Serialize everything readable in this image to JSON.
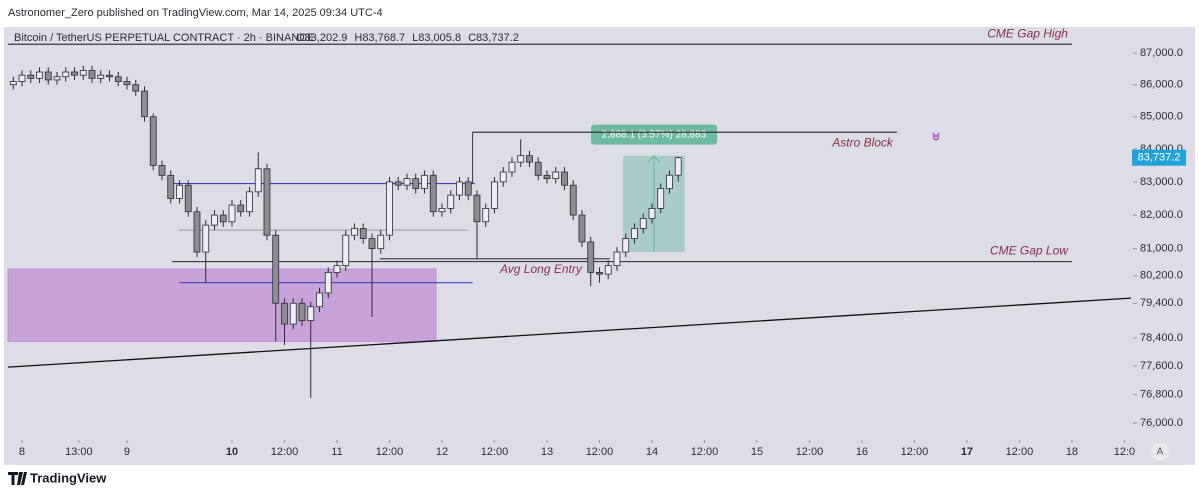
{
  "publisher": "Astronomer_Zero published on TradingView.com, Mar 14, 2025 09:34 UTC-4",
  "brand": "TradingView",
  "scale_button": "A",
  "chart_data": {
    "type": "candlestick",
    "symbol": "Bitcoin / TetherUS PERPETUAL CONTRACT · 2h · BINANCE",
    "last_labels": {
      "open": "O83,202.9",
      "high": "H83,768.7",
      "low": "L83,005.8",
      "close": "C83,737.2"
    },
    "last_price_label": "83,737.2",
    "last_price_color": "#22a3d6",
    "log_scale": true,
    "up_color": "#eceef4",
    "down_color": "#8c8d92",
    "x": [
      -2,
      0,
      2,
      4,
      6,
      8,
      10,
      12,
      14,
      16,
      18,
      20,
      22,
      24,
      26,
      28,
      30,
      32,
      34,
      36,
      38,
      40,
      42,
      44,
      46,
      48,
      50,
      52,
      54,
      56,
      58,
      60,
      62,
      64,
      66,
      68,
      70,
      72,
      74,
      76,
      78,
      80,
      82,
      84,
      86,
      88,
      90,
      92,
      94,
      96,
      98,
      100,
      102,
      104,
      106,
      108,
      110,
      112,
      114,
      116,
      118,
      120,
      122,
      124,
      126,
      128,
      130,
      132,
      134,
      136,
      138,
      140,
      142,
      144,
      146,
      148,
      150
    ],
    "open": [
      86000,
      86100,
      86300,
      86200,
      86400,
      86150,
      86250,
      86400,
      86300,
      86450,
      86200,
      86300,
      86250,
      86100,
      86000,
      85800,
      85000,
      83500,
      83200,
      82500,
      82900,
      82100,
      80900,
      81700,
      82000,
      81800,
      82300,
      82100,
      82700,
      83400,
      81400,
      79400,
      78800,
      79400,
      78900,
      79300,
      79700,
      80300,
      80500,
      81400,
      81600,
      81300,
      81000,
      81400,
      83000,
      82900,
      83100,
      82800,
      83200,
      82100,
      82200,
      82600,
      83000,
      82600,
      81800,
      82200,
      83000,
      83300,
      83600,
      83800,
      83600,
      83200,
      83100,
      83300,
      82900,
      82000,
      81200,
      80300,
      80250,
      80500,
      80900,
      81300,
      81600,
      81900,
      82200,
      82800,
      83202.9
    ],
    "high": [
      86250,
      86450,
      86450,
      86550,
      86550,
      86400,
      86550,
      86550,
      86600,
      86600,
      86450,
      86450,
      86400,
      86250,
      86150,
      85950,
      85100,
      83650,
      83350,
      83050,
      83050,
      82250,
      81850,
      82150,
      82150,
      82450,
      82450,
      82850,
      83900,
      83550,
      81550,
      79550,
      79550,
      79550,
      79450,
      79850,
      80450,
      80650,
      81550,
      81750,
      81750,
      81450,
      81550,
      83150,
      83150,
      83250,
      83250,
      83350,
      83350,
      82350,
      82750,
      83150,
      83150,
      82750,
      82350,
      83150,
      83450,
      83750,
      84300,
      83950,
      83750,
      83350,
      83450,
      83450,
      83050,
      82150,
      81350,
      80450,
      80650,
      81050,
      81450,
      81750,
      82050,
      82350,
      82950,
      83350,
      83768.7
    ],
    "low": [
      85850,
      85950,
      86050,
      86050,
      86000,
      86000,
      86100,
      86150,
      86150,
      86050,
      86050,
      86100,
      85950,
      85850,
      85650,
      84850,
      83350,
      83050,
      82350,
      82350,
      81950,
      80750,
      80000,
      81550,
      81650,
      81650,
      81950,
      81950,
      82550,
      81250,
      78300,
      78200,
      78650,
      78750,
      76700,
      79150,
      79550,
      80150,
      80350,
      81250,
      81150,
      79000,
      80850,
      81250,
      82750,
      82750,
      82650,
      82650,
      81950,
      81950,
      82050,
      82450,
      82450,
      80700,
      81650,
      82050,
      82850,
      83150,
      83450,
      83450,
      83050,
      82950,
      82950,
      82750,
      81850,
      81050,
      79900,
      80000,
      80100,
      80350,
      80750,
      81150,
      81450,
      81750,
      82050,
      82650,
      83005.8
    ],
    "close": [
      86100,
      86300,
      86200,
      86400,
      86150,
      86250,
      86400,
      86300,
      86450,
      86200,
      86300,
      86250,
      86100,
      86000,
      85800,
      85000,
      83500,
      83200,
      82500,
      82900,
      82100,
      80900,
      81700,
      82000,
      81800,
      82300,
      82100,
      82700,
      83400,
      81400,
      79400,
      78800,
      79400,
      78900,
      79300,
      79700,
      80300,
      80500,
      81400,
      81600,
      81300,
      81000,
      81400,
      83000,
      82900,
      83100,
      82800,
      83200,
      82100,
      82200,
      82600,
      83000,
      82600,
      81800,
      82200,
      83000,
      83300,
      83600,
      83800,
      83600,
      83200,
      83100,
      83300,
      82900,
      82000,
      81200,
      80300,
      80250,
      80500,
      80900,
      81300,
      81600,
      81900,
      82200,
      82800,
      83202.9,
      83737.2
    ],
    "xlim": [
      -3.2,
      253.5
    ],
    "ylim": [
      75670,
      87480
    ],
    "xticks": [
      {
        "value": 0,
        "label": "8"
      },
      {
        "value": 13,
        "label": "13:00"
      },
      {
        "value": 24,
        "label": "9"
      },
      {
        "value": 48,
        "label": "10",
        "bold": true
      },
      {
        "value": 60,
        "label": "12:00"
      },
      {
        "value": 72,
        "label": "11"
      },
      {
        "value": 84,
        "label": "12:00"
      },
      {
        "value": 96,
        "label": "12"
      },
      {
        "value": 108,
        "label": "12:00"
      },
      {
        "value": 120,
        "label": "13"
      },
      {
        "value": 132,
        "label": "12:00"
      },
      {
        "value": 144,
        "label": "14"
      },
      {
        "value": 156,
        "label": "12:00"
      },
      {
        "value": 168,
        "label": "15"
      },
      {
        "value": 180,
        "label": "12:00"
      },
      {
        "value": 192,
        "label": "16"
      },
      {
        "value": 204,
        "label": "12:00"
      },
      {
        "value": 216,
        "label": "17",
        "bold": true
      },
      {
        "value": 228,
        "label": "12:00"
      },
      {
        "value": 240,
        "label": "18"
      },
      {
        "value": 252,
        "label": "12:0"
      }
    ],
    "yticks": [
      {
        "value": 87000,
        "label": "87,000.0"
      },
      {
        "value": 86000,
        "label": "86,000.0"
      },
      {
        "value": 85000,
        "label": "85,000.0"
      },
      {
        "value": 84000,
        "label": "84,000.0"
      },
      {
        "value": 83000,
        "label": "83,000.0"
      },
      {
        "value": 82000,
        "label": "82,000.0"
      },
      {
        "value": 81000,
        "label": "81,000.0"
      },
      {
        "value": 80200,
        "label": "80,200.0"
      },
      {
        "value": 79400,
        "label": "79,400.0"
      },
      {
        "value": 78400,
        "label": "78,400.0"
      },
      {
        "value": 77600,
        "label": "77,600.0"
      },
      {
        "value": 76800,
        "label": "76,800.0"
      },
      {
        "value": 76000,
        "label": "76,000.0"
      }
    ],
    "zones": [
      {
        "top": 80400,
        "bottom": 78300,
        "x_range": [
          -3.2,
          94.6
        ],
        "color": "#c18fd6"
      }
    ],
    "hlines": [
      {
        "label": "CME Gap High",
        "value": 87280,
        "x_range": [
          -3.2,
          240
        ],
        "color": "#3a3a3a"
      },
      {
        "label": "Astro Block",
        "value": 84520,
        "x_range": [
          103,
          200
        ],
        "color": "#3a3a3a"
      },
      {
        "label": "CME Gap Low",
        "value": 80620,
        "x_range": [
          34.3,
          240
        ],
        "color": "#3a3a3a"
      },
      {
        "label": "Avg Long Entry",
        "value": 80700,
        "x_range": [
          81.8,
          134.4
        ],
        "color": "#3a3a3a"
      },
      {
        "value": 82950,
        "x_range": [
          34.3,
          103.5
        ],
        "color": "#3f3fbf"
      },
      {
        "value": 80000,
        "x_range": [
          36,
          103
        ],
        "color": "#3f3fbf"
      },
      {
        "value": 81550,
        "x_range": [
          36,
          102
        ],
        "color": "#a6a6ae"
      }
    ],
    "trendline": {
      "x": [
        -3.2,
        253.5
      ],
      "y": [
        77570,
        79550
      ],
      "color": "#111111"
    },
    "measure": {
      "label": "2,888.1 (3.57%) 28,883",
      "x_range": [
        137.4,
        151.5
      ],
      "top": 83800,
      "bottom": 80900,
      "color": "#6db9a3"
    }
  }
}
